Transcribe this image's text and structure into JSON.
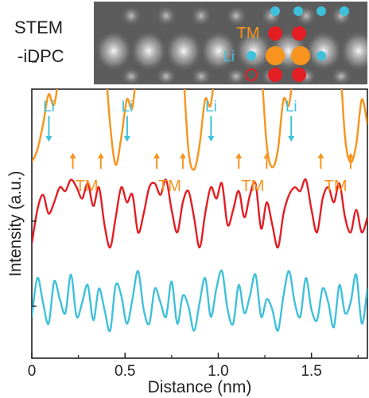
{
  "inset": {
    "label_line1": "STEM",
    "label_line2": "-iDPC",
    "tm_label": "TM",
    "li_label": "Li",
    "colors": {
      "tm_dot": "#f7941d",
      "o_dot": "#e31e24",
      "li_dot": "#3fc0db"
    }
  },
  "chart_data": {
    "type": "line",
    "title": "",
    "xlabel": "Distance (nm)",
    "ylabel": "Intensity (a.u.)",
    "xlim": [
      0,
      1.8
    ],
    "xticks": [
      0,
      0.5,
      1.0,
      1.5
    ],
    "xtick_labels": [
      "0",
      "0.5",
      "1.0",
      "1.5"
    ],
    "y_units": "arbitrary",
    "series": [
      {
        "name": "",
        "color": "#f7941d",
        "offset": 0.7,
        "amplitude": 1.0,
        "x": [
          0.0,
          0.03,
          0.06,
          0.09,
          0.12,
          0.15,
          0.18,
          0.21,
          0.24,
          0.27,
          0.3,
          0.33,
          0.36,
          0.39,
          0.42,
          0.45,
          0.48,
          0.51,
          0.54,
          0.57,
          0.6,
          0.63,
          0.66,
          0.69,
          0.72,
          0.75,
          0.78,
          0.81,
          0.84,
          0.87,
          0.9,
          0.93,
          0.96,
          0.99,
          1.02,
          1.05,
          1.08,
          1.11,
          1.14,
          1.17,
          1.2,
          1.23,
          1.26,
          1.29,
          1.32,
          1.35,
          1.38,
          1.41,
          1.44,
          1.47,
          1.5,
          1.53,
          1.56,
          1.59,
          1.62,
          1.65,
          1.68,
          1.71,
          1.74,
          1.77,
          1.8
        ],
        "y": [
          0.05,
          0.1,
          0.2,
          0.32,
          0.28,
          0.45,
          0.8,
          0.98,
          0.7,
          0.45,
          0.55,
          0.75,
          0.82,
          0.5,
          0.2,
          0.04,
          0.15,
          0.3,
          0.27,
          0.5,
          0.85,
          0.95,
          0.7,
          0.5,
          0.6,
          0.78,
          0.8,
          0.45,
          0.1,
          0.02,
          0.12,
          0.3,
          0.28,
          0.5,
          0.85,
          0.97,
          0.7,
          0.5,
          0.6,
          0.8,
          0.8,
          0.45,
          0.12,
          0.03,
          0.1,
          0.3,
          0.28,
          0.48,
          0.8,
          0.96,
          0.72,
          0.48,
          0.58,
          0.78,
          0.82,
          0.5,
          0.15,
          0.05,
          0.12,
          0.3,
          0.2
        ]
      },
      {
        "name": "",
        "color": "#e31e24",
        "offset": 0.38,
        "amplitude": 0.3,
        "x": [
          0.0,
          0.03,
          0.06,
          0.09,
          0.12,
          0.15,
          0.18,
          0.21,
          0.24,
          0.27,
          0.3,
          0.33,
          0.36,
          0.39,
          0.42,
          0.45,
          0.48,
          0.51,
          0.54,
          0.57,
          0.6,
          0.63,
          0.66,
          0.69,
          0.72,
          0.75,
          0.78,
          0.81,
          0.84,
          0.87,
          0.9,
          0.93,
          0.96,
          0.99,
          1.02,
          1.05,
          1.08,
          1.11,
          1.14,
          1.17,
          1.2,
          1.23,
          1.26,
          1.29,
          1.32,
          1.35,
          1.38,
          1.41,
          1.44,
          1.47,
          1.5,
          1.53,
          1.56,
          1.59,
          1.62,
          1.65,
          1.68,
          1.71,
          1.74,
          1.77,
          1.8
        ],
        "y": [
          0.15,
          0.6,
          0.8,
          0.55,
          0.7,
          0.9,
          0.85,
          1.0,
          0.9,
          0.75,
          0.95,
          0.65,
          0.9,
          0.4,
          0.1,
          0.5,
          0.9,
          0.7,
          0.8,
          0.3,
          0.55,
          0.9,
          0.95,
          0.8,
          1.0,
          0.6,
          0.3,
          0.7,
          0.85,
          0.5,
          0.1,
          0.55,
          0.9,
          0.75,
          0.95,
          0.4,
          0.6,
          0.85,
          0.5,
          0.8,
          0.95,
          0.35,
          0.7,
          0.4,
          0.1,
          0.55,
          0.8,
          0.9,
          0.85,
          1.0,
          0.6,
          0.3,
          0.75,
          0.9,
          0.7,
          0.95,
          0.5,
          0.3,
          0.6,
          0.3,
          0.5
        ]
      },
      {
        "name": "",
        "color": "#3fc0db",
        "offset": 0.05,
        "amplitude": 0.28,
        "x": [
          0.0,
          0.03,
          0.06,
          0.09,
          0.12,
          0.15,
          0.18,
          0.21,
          0.24,
          0.27,
          0.3,
          0.33,
          0.36,
          0.39,
          0.42,
          0.45,
          0.48,
          0.51,
          0.54,
          0.57,
          0.6,
          0.63,
          0.66,
          0.69,
          0.72,
          0.75,
          0.78,
          0.81,
          0.84,
          0.87,
          0.9,
          0.93,
          0.96,
          0.99,
          1.02,
          1.05,
          1.08,
          1.11,
          1.14,
          1.17,
          1.2,
          1.23,
          1.26,
          1.29,
          1.32,
          1.35,
          1.38,
          1.41,
          1.44,
          1.47,
          1.5,
          1.53,
          1.56,
          1.59,
          1.62,
          1.65,
          1.68,
          1.71,
          1.74,
          1.77,
          1.8
        ],
        "y": [
          0.3,
          0.85,
          0.5,
          0.2,
          0.8,
          0.55,
          0.35,
          0.9,
          0.3,
          0.5,
          0.75,
          0.25,
          0.7,
          0.4,
          0.1,
          0.75,
          0.6,
          0.2,
          0.55,
          0.95,
          0.4,
          0.2,
          0.7,
          0.5,
          0.3,
          0.8,
          0.2,
          0.6,
          0.45,
          0.1,
          0.5,
          0.85,
          0.3,
          0.7,
          0.95,
          0.4,
          0.2,
          0.75,
          0.35,
          0.6,
          0.9,
          0.3,
          0.55,
          0.4,
          0.1,
          0.6,
          0.95,
          0.5,
          0.3,
          0.85,
          0.4,
          0.25,
          0.7,
          0.5,
          0.15,
          0.75,
          0.35,
          0.5,
          0.9,
          0.2,
          0.7
        ]
      }
    ],
    "annotations": {
      "li_text": "Li",
      "tm_text": "TM",
      "li_x": [
        0.1,
        0.52,
        0.97,
        1.4
      ],
      "tm_pairs": [
        [
          0.22,
          0.37
        ],
        [
          0.67,
          0.81
        ],
        [
          1.11,
          1.26
        ],
        [
          1.55,
          1.71
        ]
      ]
    }
  }
}
